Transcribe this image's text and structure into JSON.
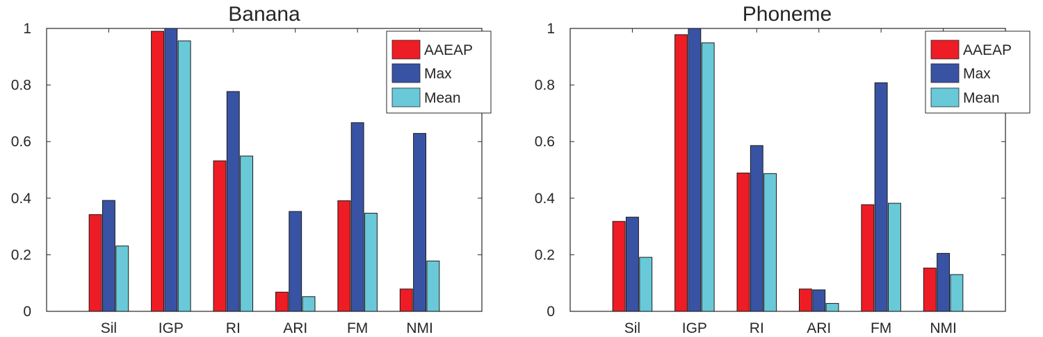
{
  "chart_data": [
    {
      "type": "bar",
      "title": "Banana",
      "xlabel": "",
      "ylabel": "",
      "categories": [
        "Sil",
        "IGP",
        "RI",
        "ARI",
        "FM",
        "NMI"
      ],
      "series": [
        {
          "name": "AAEAP",
          "color": "#ee1c25",
          "values": [
            0.342,
            0.99,
            0.532,
            0.068,
            0.391,
            0.079
          ]
        },
        {
          "name": "Max",
          "color": "#3953a4",
          "values": [
            0.392,
            1.0,
            0.777,
            0.353,
            0.667,
            0.629
          ]
        },
        {
          "name": "Mean",
          "color": "#69c9d8",
          "values": [
            0.231,
            0.956,
            0.549,
            0.052,
            0.347,
            0.178
          ]
        }
      ],
      "ylim": [
        0,
        1
      ],
      "yticks": [
        "0",
        "0.2",
        "0.4",
        "0.6",
        "0.8",
        "1"
      ],
      "grid": false,
      "legend_position": "top-right"
    },
    {
      "type": "bar",
      "title": "Phoneme",
      "xlabel": "",
      "ylabel": "",
      "categories": [
        "Sil",
        "IGP",
        "RI",
        "ARI",
        "FM",
        "NMI"
      ],
      "series": [
        {
          "name": "AAEAP",
          "color": "#ee1c25",
          "values": [
            0.318,
            0.978,
            0.489,
            0.079,
            0.377,
            0.153
          ]
        },
        {
          "name": "Max",
          "color": "#3953a4",
          "values": [
            0.333,
            1.0,
            0.586,
            0.076,
            0.808,
            0.205
          ]
        },
        {
          "name": "Mean",
          "color": "#69c9d8",
          "values": [
            0.191,
            0.949,
            0.487,
            0.028,
            0.382,
            0.13
          ]
        }
      ],
      "ylim": [
        0,
        1
      ],
      "yticks": [
        "0",
        "0.2",
        "0.4",
        "0.6",
        "0.8",
        "1"
      ],
      "grid": false,
      "legend_position": "top-right"
    }
  ]
}
